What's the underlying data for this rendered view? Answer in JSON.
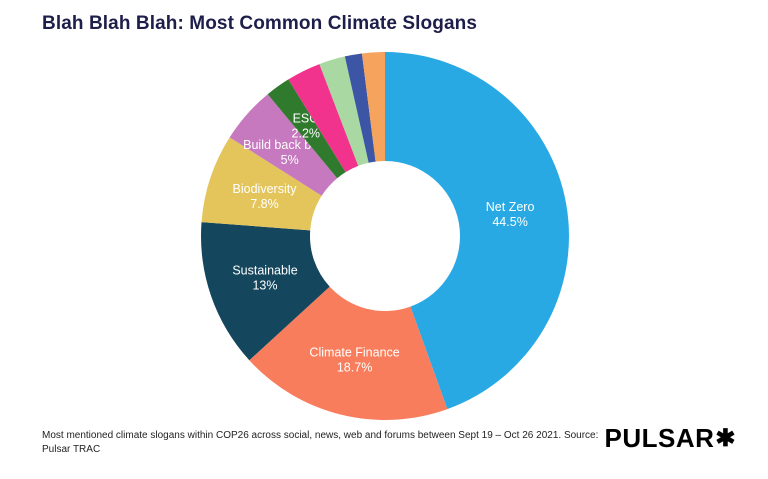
{
  "page": {
    "title": "Blah Blah Blah: Most Common Climate Slogans",
    "footnote": "Most mentioned climate slogans within COP26 across social, news, web and forums between Sept 19 – Oct 26 2021. Source: Pulsar TRAC",
    "logo_text": "PULSAR",
    "logo_mark": "✱",
    "background": "#FFFFFF"
  },
  "chart_data": {
    "type": "pie",
    "subtype": "donut",
    "title": "Blah Blah Blah: Most Common Climate Slogans",
    "direction": "clockwise",
    "start_angle_deg": 0,
    "inner_radius_ratio": 0.41,
    "legend": "none",
    "categories": [
      "Net Zero",
      "Climate Finance",
      "Sustainable",
      "Biodiversity",
      "Build back better",
      "ESG",
      "",
      "",
      "",
      ""
    ],
    "values": [
      44.5,
      18.7,
      13,
      7.8,
      5,
      2.2,
      3.0,
      2.3,
      1.5,
      2.0
    ],
    "slices": [
      {
        "label": "Net Zero",
        "value": 44.5,
        "pct_label": "44.5%",
        "color": "#29A9E3",
        "labeled": true
      },
      {
        "label": "Climate Finance",
        "value": 18.7,
        "pct_label": "18.7%",
        "color": "#F87D5C",
        "labeled": true
      },
      {
        "label": "Sustainable",
        "value": 13,
        "pct_label": "13%",
        "color": "#14465E",
        "labeled": true
      },
      {
        "label": "Biodiversity",
        "value": 7.8,
        "pct_label": "7.8%",
        "color": "#E3C55C",
        "labeled": true
      },
      {
        "label": "Build back better",
        "value": 5,
        "pct_label": "5%",
        "color": "#C679BE",
        "labeled": true
      },
      {
        "label": "ESG",
        "value": 2.2,
        "pct_label": "2.2%",
        "color": "#2F7A2C",
        "labeled": true
      },
      {
        "label": "",
        "value": 3.0,
        "pct_label": "",
        "color": "#F1338D",
        "labeled": false
      },
      {
        "label": "",
        "value": 2.3,
        "pct_label": "",
        "color": "#A9D8A2",
        "labeled": false
      },
      {
        "label": "",
        "value": 1.5,
        "pct_label": "",
        "color": "#3C55A5",
        "labeled": false
      },
      {
        "label": "",
        "value": 2.0,
        "pct_label": "",
        "color": "#F6A35D",
        "labeled": false
      }
    ]
  }
}
